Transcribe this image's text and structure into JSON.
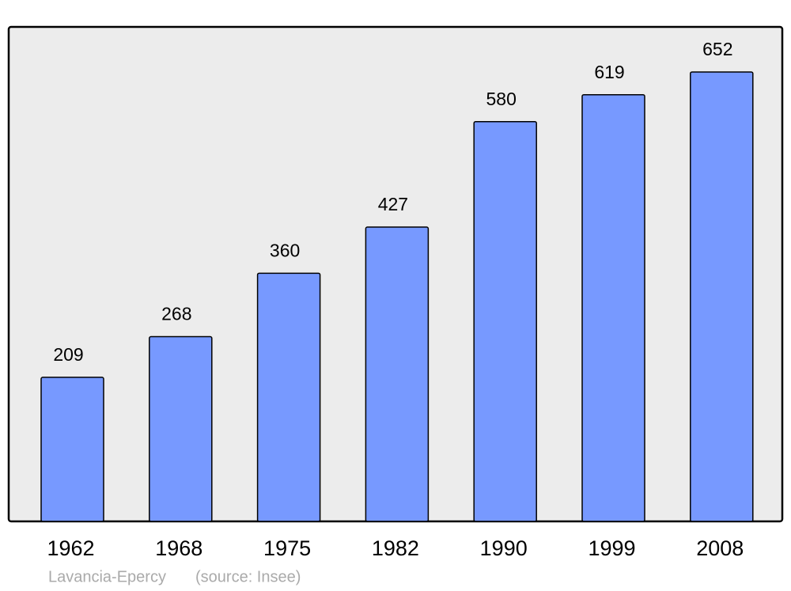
{
  "chart_data": {
    "type": "bar",
    "categories": [
      "1962",
      "1968",
      "1975",
      "1982",
      "1990",
      "1999",
      "2008"
    ],
    "values": [
      209,
      268,
      360,
      427,
      580,
      619,
      652
    ],
    "color": "#7799ff",
    "caption": "Lavancia-Epercy",
    "source": "(source: Insee)"
  }
}
